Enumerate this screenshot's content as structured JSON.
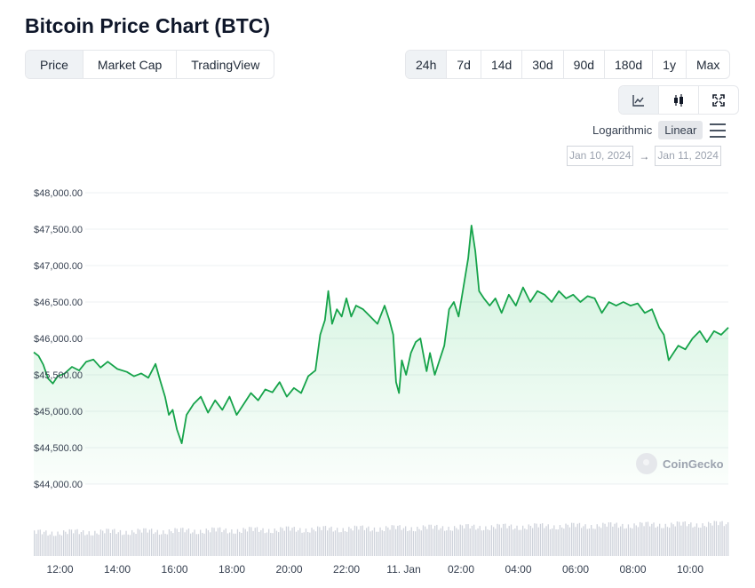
{
  "title": "Bitcoin Price Chart (BTC)",
  "view_tabs": [
    "Price",
    "Market Cap",
    "TradingView"
  ],
  "active_view": 0,
  "range_tabs": [
    "24h",
    "7d",
    "14d",
    "30d",
    "90d",
    "180d",
    "1y",
    "Max"
  ],
  "active_range": 0,
  "chart_type_icons": [
    "line-chart-icon",
    "candlestick-icon",
    "fullscreen-icon"
  ],
  "active_chart_type": 0,
  "scale": {
    "logarithmic": "Logarithmic",
    "linear": "Linear",
    "active": "linear"
  },
  "date_range": {
    "from": "Jan 10, 2024",
    "to": "Jan 11, 2024",
    "arrow": "→"
  },
  "watermark": "CoinGecko",
  "colors": {
    "line": "#16a34a",
    "volume": "#cfd3db",
    "grid": "#eef0f3",
    "axis_text": "#374151"
  },
  "chart_data": {
    "type": "area",
    "title": "",
    "xlabel": "",
    "ylabel": "",
    "ylim": [
      44000,
      48000
    ],
    "y_ticks": [
      48000,
      47500,
      47000,
      46500,
      46000,
      45500,
      45000,
      44500,
      44000
    ],
    "y_tick_labels": [
      "$48,000.00",
      "$47,500.00",
      "$47,000.00",
      "$46,500.00",
      "$46,000.00",
      "$45,500.00",
      "$45,000.00",
      "$44,500.00",
      "$44,000.00"
    ],
    "x_range": [
      "2024-01-10T11:05",
      "2024-01-11T11:20"
    ],
    "x_ticks": [
      "2024-01-10T12:00",
      "2024-01-10T14:00",
      "2024-01-10T16:00",
      "2024-01-10T18:00",
      "2024-01-10T20:00",
      "2024-01-10T22:00",
      "2024-01-11T00:00",
      "2024-01-11T02:00",
      "2024-01-11T04:00",
      "2024-01-11T06:00",
      "2024-01-11T08:00",
      "2024-01-11T10:00"
    ],
    "x_tick_labels": [
      "12:00",
      "14:00",
      "16:00",
      "18:00",
      "20:00",
      "22:00",
      "11. Jan",
      "02:00",
      "04:00",
      "06:00",
      "08:00",
      "10:00"
    ],
    "grid": true,
    "legend": "none",
    "series": [
      {
        "values": [
          [
            "2024-01-10T11:05",
            45810
          ],
          [
            "2024-01-10T11:15",
            45760
          ],
          [
            "2024-01-10T11:25",
            45640
          ],
          [
            "2024-01-10T11:35",
            45450
          ],
          [
            "2024-01-10T11:45",
            45380
          ],
          [
            "2024-01-10T11:55",
            45480
          ],
          [
            "2024-01-10T12:10",
            45520
          ],
          [
            "2024-01-10T12:25",
            45610
          ],
          [
            "2024-01-10T12:40",
            45560
          ],
          [
            "2024-01-10T12:55",
            45680
          ],
          [
            "2024-01-10T13:10",
            45710
          ],
          [
            "2024-01-10T13:25",
            45600
          ],
          [
            "2024-01-10T13:40",
            45680
          ],
          [
            "2024-01-10T14:00",
            45580
          ],
          [
            "2024-01-10T14:20",
            45540
          ],
          [
            "2024-01-10T14:35",
            45480
          ],
          [
            "2024-01-10T14:50",
            45520
          ],
          [
            "2024-01-10T15:05",
            45460
          ],
          [
            "2024-01-10T15:20",
            45650
          ],
          [
            "2024-01-10T15:30",
            45420
          ],
          [
            "2024-01-10T15:40",
            45200
          ],
          [
            "2024-01-10T15:48",
            44950
          ],
          [
            "2024-01-10T15:56",
            45020
          ],
          [
            "2024-01-10T16:05",
            44750
          ],
          [
            "2024-01-10T16:15",
            44560
          ],
          [
            "2024-01-10T16:25",
            44950
          ],
          [
            "2024-01-10T16:40",
            45100
          ],
          [
            "2024-01-10T16:55",
            45200
          ],
          [
            "2024-01-10T17:10",
            44980
          ],
          [
            "2024-01-10T17:25",
            45150
          ],
          [
            "2024-01-10T17:40",
            45020
          ],
          [
            "2024-01-10T17:55",
            45200
          ],
          [
            "2024-01-10T18:10",
            44950
          ],
          [
            "2024-01-10T18:25",
            45100
          ],
          [
            "2024-01-10T18:40",
            45250
          ],
          [
            "2024-01-10T18:55",
            45150
          ],
          [
            "2024-01-10T19:10",
            45300
          ],
          [
            "2024-01-10T19:25",
            45260
          ],
          [
            "2024-01-10T19:40",
            45400
          ],
          [
            "2024-01-10T19:55",
            45200
          ],
          [
            "2024-01-10T20:10",
            45320
          ],
          [
            "2024-01-10T20:25",
            45250
          ],
          [
            "2024-01-10T20:40",
            45480
          ],
          [
            "2024-01-10T20:55",
            45560
          ],
          [
            "2024-01-10T21:05",
            46050
          ],
          [
            "2024-01-10T21:15",
            46250
          ],
          [
            "2024-01-10T21:22",
            46650
          ],
          [
            "2024-01-10T21:30",
            46200
          ],
          [
            "2024-01-10T21:40",
            46400
          ],
          [
            "2024-01-10T21:50",
            46300
          ],
          [
            "2024-01-10T22:00",
            46550
          ],
          [
            "2024-01-10T22:10",
            46300
          ],
          [
            "2024-01-10T22:20",
            46450
          ],
          [
            "2024-01-10T22:35",
            46400
          ],
          [
            "2024-01-10T22:50",
            46300
          ],
          [
            "2024-01-10T23:05",
            46200
          ],
          [
            "2024-01-10T23:20",
            46450
          ],
          [
            "2024-01-10T23:30",
            46250
          ],
          [
            "2024-01-10T23:38",
            46050
          ],
          [
            "2024-01-10T23:44",
            45400
          ],
          [
            "2024-01-10T23:50",
            45250
          ],
          [
            "2024-01-10T23:56",
            45700
          ],
          [
            "2024-01-11T00:05",
            45500
          ],
          [
            "2024-01-11T00:15",
            45800
          ],
          [
            "2024-01-11T00:25",
            45950
          ],
          [
            "2024-01-11T00:35",
            46000
          ],
          [
            "2024-01-11T00:42",
            45750
          ],
          [
            "2024-01-11T00:48",
            45550
          ],
          [
            "2024-01-11T00:55",
            45800
          ],
          [
            "2024-01-11T01:05",
            45500
          ],
          [
            "2024-01-11T01:15",
            45700
          ],
          [
            "2024-01-11T01:25",
            45900
          ],
          [
            "2024-01-11T01:35",
            46400
          ],
          [
            "2024-01-11T01:45",
            46500
          ],
          [
            "2024-01-11T01:55",
            46300
          ],
          [
            "2024-01-11T02:05",
            46700
          ],
          [
            "2024-01-11T02:15",
            47100
          ],
          [
            "2024-01-11T02:22",
            47550
          ],
          [
            "2024-01-11T02:30",
            47200
          ],
          [
            "2024-01-11T02:38",
            46650
          ],
          [
            "2024-01-11T02:48",
            46550
          ],
          [
            "2024-01-11T03:00",
            46450
          ],
          [
            "2024-01-11T03:12",
            46550
          ],
          [
            "2024-01-11T03:25",
            46350
          ],
          [
            "2024-01-11T03:40",
            46600
          ],
          [
            "2024-01-11T03:55",
            46450
          ],
          [
            "2024-01-11T04:10",
            46700
          ],
          [
            "2024-01-11T04:25",
            46500
          ],
          [
            "2024-01-11T04:40",
            46650
          ],
          [
            "2024-01-11T04:55",
            46600
          ],
          [
            "2024-01-11T05:10",
            46500
          ],
          [
            "2024-01-11T05:25",
            46650
          ],
          [
            "2024-01-11T05:40",
            46550
          ],
          [
            "2024-01-11T05:55",
            46600
          ],
          [
            "2024-01-11T06:10",
            46500
          ],
          [
            "2024-01-11T06:25",
            46580
          ],
          [
            "2024-01-11T06:40",
            46550
          ],
          [
            "2024-01-11T06:55",
            46350
          ],
          [
            "2024-01-11T07:10",
            46500
          ],
          [
            "2024-01-11T07:25",
            46450
          ],
          [
            "2024-01-11T07:40",
            46500
          ],
          [
            "2024-01-11T07:55",
            46450
          ],
          [
            "2024-01-11T08:10",
            46480
          ],
          [
            "2024-01-11T08:25",
            46350
          ],
          [
            "2024-01-11T08:40",
            46400
          ],
          [
            "2024-01-11T08:55",
            46150
          ],
          [
            "2024-01-11T09:05",
            46050
          ],
          [
            "2024-01-11T09:15",
            45700
          ],
          [
            "2024-01-11T09:25",
            45800
          ],
          [
            "2024-01-11T09:35",
            45900
          ],
          [
            "2024-01-11T09:50",
            45850
          ],
          [
            "2024-01-11T10:05",
            46000
          ],
          [
            "2024-01-11T10:20",
            46100
          ],
          [
            "2024-01-11T10:35",
            45950
          ],
          [
            "2024-01-11T10:50",
            46100
          ],
          [
            "2024-01-11T11:05",
            46050
          ],
          [
            "2024-01-11T11:20",
            46150
          ]
        ]
      }
    ]
  }
}
